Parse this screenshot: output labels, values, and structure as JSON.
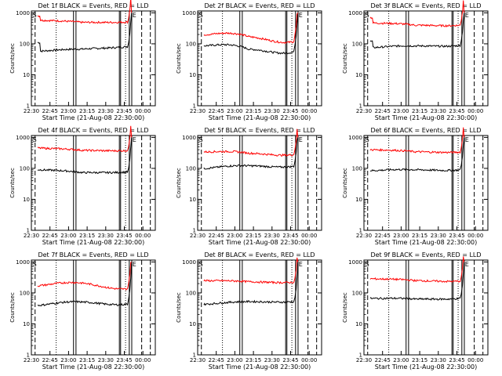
{
  "chart_data": [
    {
      "type": "line",
      "title": "Det 1f BLACK = Events, RED = LLD",
      "xlabel": "Start Time (21-Aug-08 22:30:00)",
      "ylabel": "Counts/sec",
      "yscale": "log",
      "ylim": [
        1,
        1000
      ],
      "x_ticks": [
        "22:30",
        "22:45",
        "23:00",
        "23:15",
        "23:30",
        "23:45",
        "00:00"
      ],
      "y_ticks": [
        "1",
        "10",
        "100",
        "1000"
      ],
      "series": [
        {
          "color": "#000000",
          "level_start": 60,
          "level_mid": 65,
          "level_end": 85,
          "spike": 110,
          "wave": 0.05
        },
        {
          "color": "#ff0000",
          "level_start": 600,
          "level_mid": 480,
          "level_end": 520,
          "spike": 800,
          "wave": 0.03
        }
      ],
      "annotations": [
        "S",
        "E"
      ]
    },
    {
      "type": "line",
      "title": "Det 2f BLACK = Events, RED = LLD",
      "xlabel": "Start Time (21-Aug-08 22:30:00)",
      "ylabel": "Counts/sec",
      "yscale": "log",
      "ylim": [
        1,
        1000
      ],
      "x_ticks": [
        "22:30",
        "22:45",
        "23:00",
        "23:15",
        "23:30",
        "23:45",
        "00:00"
      ],
      "y_ticks": [
        "1",
        "10",
        "100",
        "1000"
      ],
      "series": [
        {
          "color": "#000000",
          "level_start": 110,
          "level_mid": 55,
          "level_end": 70,
          "spike": 0,
          "wave": 0.25
        },
        {
          "color": "#ff0000",
          "level_start": 250,
          "level_mid": 140,
          "level_end": 150,
          "spike": 0,
          "wave": 0.25
        }
      ],
      "annotations": [
        "S",
        "E"
      ]
    },
    {
      "type": "line",
      "title": "Det 3f BLACK = Events, RED = LLD",
      "xlabel": "Start Time (21-Aug-08 22:30:00)",
      "ylabel": "Counts/sec",
      "yscale": "log",
      "ylim": [
        1,
        1000
      ],
      "x_ticks": [
        "22:30",
        "22:45",
        "23:00",
        "23:15",
        "23:30",
        "23:45",
        "00:00"
      ],
      "y_ticks": [
        "1",
        "10",
        "100",
        "1000"
      ],
      "series": [
        {
          "color": "#000000",
          "level_start": 80,
          "level_mid": 80,
          "level_end": 95,
          "spike": 120,
          "wave": 0.08
        },
        {
          "color": "#ff0000",
          "level_start": 500,
          "level_mid": 380,
          "level_end": 420,
          "spike": 700,
          "wave": 0.06
        }
      ],
      "annotations": [
        "S",
        "E"
      ]
    },
    {
      "type": "line",
      "title": "Det 4f BLACK = Events, RED = LLD",
      "xlabel": "Start Time (21-Aug-08 22:30:00)",
      "ylabel": "Counts/sec",
      "yscale": "log",
      "ylim": [
        1,
        1000
      ],
      "x_ticks": [
        "22:30",
        "22:45",
        "23:00",
        "23:15",
        "23:30",
        "23:45",
        "00:00"
      ],
      "y_ticks": [
        "1",
        "10",
        "100",
        "1000"
      ],
      "series": [
        {
          "color": "#000000",
          "level_start": 95,
          "level_mid": 70,
          "level_end": 80,
          "spike": 0,
          "wave": 0.05
        },
        {
          "color": "#ff0000",
          "level_start": 470,
          "level_mid": 370,
          "level_end": 390,
          "spike": 0,
          "wave": 0.04
        }
      ],
      "annotations": [
        "S",
        "E"
      ]
    },
    {
      "type": "line",
      "title": "Det 5f BLACK = Events, RED = LLD",
      "xlabel": "Start Time (21-Aug-08 22:30:00)",
      "ylabel": "Counts/sec",
      "yscale": "log",
      "ylim": [
        1,
        1000
      ],
      "x_ticks": [
        "22:30",
        "22:45",
        "23:00",
        "23:15",
        "23:30",
        "23:45",
        "00:00"
      ],
      "y_ticks": [
        "1",
        "10",
        "100",
        "1000"
      ],
      "series": [
        {
          "color": "#000000",
          "level_start": 110,
          "level_mid": 110,
          "level_end": 130,
          "spike": 0,
          "wave": 0.12
        },
        {
          "color": "#ff0000",
          "level_start": 380,
          "level_mid": 280,
          "level_end": 310,
          "spike": 0,
          "wave": 0.12
        }
      ],
      "annotations": [
        "S",
        "E"
      ]
    },
    {
      "type": "line",
      "title": "Det 6f BLACK = Events, RED = LLD",
      "xlabel": "Start Time (21-Aug-08 22:30:00)",
      "ylabel": "Counts/sec",
      "yscale": "log",
      "ylim": [
        1,
        1000
      ],
      "x_ticks": [
        "22:30",
        "22:45",
        "23:00",
        "23:15",
        "23:30",
        "23:45",
        "00:00"
      ],
      "y_ticks": [
        "1",
        "10",
        "100",
        "1000"
      ],
      "series": [
        {
          "color": "#000000",
          "level_start": 90,
          "level_mid": 85,
          "level_end": 95,
          "spike": 0,
          "wave": 0.07
        },
        {
          "color": "#ff0000",
          "level_start": 420,
          "level_mid": 330,
          "level_end": 350,
          "spike": 0,
          "wave": 0.05
        }
      ],
      "annotations": [
        "S",
        "E"
      ]
    },
    {
      "type": "line",
      "title": "Det 7f BLACK = Events, RED = LLD",
      "xlabel": "Start Time (21-Aug-08 22:30:00)",
      "ylabel": "Counts/sec",
      "yscale": "log",
      "ylim": [
        1,
        1000
      ],
      "x_ticks": [
        "22:30",
        "22:45",
        "23:00",
        "23:15",
        "23:30",
        "23:45",
        "00:00"
      ],
      "y_ticks": [
        "1",
        "10",
        "100",
        "1000"
      ],
      "series": [
        {
          "color": "#000000",
          "level_start": 45,
          "level_mid": 45,
          "level_end": 50,
          "spike": 0,
          "wave": 0.15
        },
        {
          "color": "#ff0000",
          "level_start": 200,
          "level_mid": 180,
          "level_end": 160,
          "spike": 0,
          "wave": 0.18
        }
      ],
      "annotations": [
        "S",
        "E"
      ]
    },
    {
      "type": "line",
      "title": "Det 8f BLACK = Events, RED = LLD",
      "xlabel": "Start Time (21-Aug-08 22:30:00)",
      "ylabel": "Counts/sec",
      "yscale": "log",
      "ylim": [
        1,
        1000
      ],
      "x_ticks": [
        "22:30",
        "22:45",
        "23:00",
        "23:15",
        "23:30",
        "23:45",
        "00:00"
      ],
      "y_ticks": [
        "1",
        "10",
        "100",
        "1000"
      ],
      "series": [
        {
          "color": "#000000",
          "level_start": 45,
          "level_mid": 50,
          "level_end": 55,
          "spike": 0,
          "wave": 0.06
        },
        {
          "color": "#ff0000",
          "level_start": 260,
          "level_mid": 220,
          "level_end": 230,
          "spike": 0,
          "wave": 0.05
        }
      ],
      "annotations": [
        "S",
        "E"
      ]
    },
    {
      "type": "line",
      "title": "Det 9f BLACK = Events, RED = LLD",
      "xlabel": "Start Time (21-Aug-08 22:30:00)",
      "ylabel": "Counts/sec",
      "yscale": "log",
      "ylim": [
        1,
        1000
      ],
      "x_ticks": [
        "22:30",
        "22:45",
        "23:00",
        "23:15",
        "23:30",
        "23:45",
        "00:00"
      ],
      "y_ticks": [
        "1",
        "10",
        "100",
        "1000"
      ],
      "series": [
        {
          "color": "#000000",
          "level_start": 70,
          "level_mid": 60,
          "level_end": 70,
          "spike": 0,
          "wave": 0.06
        },
        {
          "color": "#ff0000",
          "level_start": 300,
          "level_mid": 240,
          "level_end": 250,
          "spike": 0,
          "wave": 0.05
        }
      ],
      "annotations": [
        "S",
        "E"
      ]
    }
  ]
}
